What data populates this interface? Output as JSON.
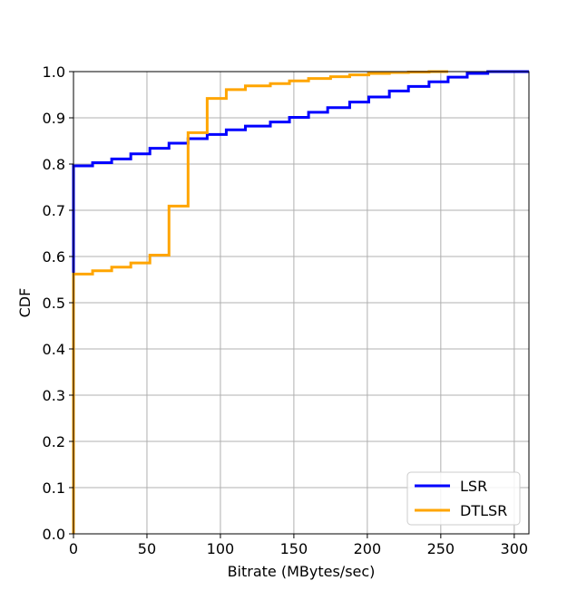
{
  "chart_data": {
    "type": "line",
    "step": true,
    "xlabel": "Bitrate (MBytes/sec)",
    "ylabel": "CDF",
    "xlim": [
      0,
      310
    ],
    "ylim": [
      0,
      1
    ],
    "xticks": [
      0,
      50,
      100,
      150,
      200,
      250,
      300
    ],
    "yticks": [
      0.0,
      0.1,
      0.2,
      0.3,
      0.4,
      0.5,
      0.6,
      0.7,
      0.8,
      0.9,
      1.0
    ],
    "xtick_labels": [
      "0",
      "50",
      "100",
      "150",
      "200",
      "250",
      "300"
    ],
    "ytick_labels": [
      "0.0",
      "0.1",
      "0.2",
      "0.3",
      "0.4",
      "0.5",
      "0.6",
      "0.7",
      "0.8",
      "0.9",
      "1.0"
    ],
    "grid": true,
    "legend_position": "bottom-right",
    "series": [
      {
        "name": "LSR",
        "color": "#0000ff",
        "x": [
          0,
          0,
          13,
          26,
          39,
          52,
          65,
          78,
          91,
          104,
          117,
          134,
          147,
          160,
          173,
          188,
          201,
          215,
          228,
          242,
          255,
          268,
          282,
          310
        ],
        "y": [
          0,
          0.796,
          0.803,
          0.811,
          0.822,
          0.834,
          0.845,
          0.855,
          0.864,
          0.874,
          0.882,
          0.891,
          0.901,
          0.912,
          0.922,
          0.934,
          0.945,
          0.958,
          0.968,
          0.978,
          0.988,
          0.996,
          1.0,
          1.0
        ]
      },
      {
        "name": "DTLSR",
        "color": "#ffa500",
        "x": [
          0,
          0,
          13,
          26,
          39,
          52,
          65,
          78,
          91,
          104,
          117,
          134,
          147,
          160,
          175,
          188,
          201,
          215,
          228,
          242,
          255
        ],
        "y": [
          0,
          0.562,
          0.569,
          0.577,
          0.586,
          0.603,
          0.709,
          0.868,
          0.942,
          0.961,
          0.969,
          0.974,
          0.98,
          0.985,
          0.989,
          0.993,
          0.996,
          0.998,
          0.999,
          1.0,
          1.0
        ]
      }
    ]
  }
}
